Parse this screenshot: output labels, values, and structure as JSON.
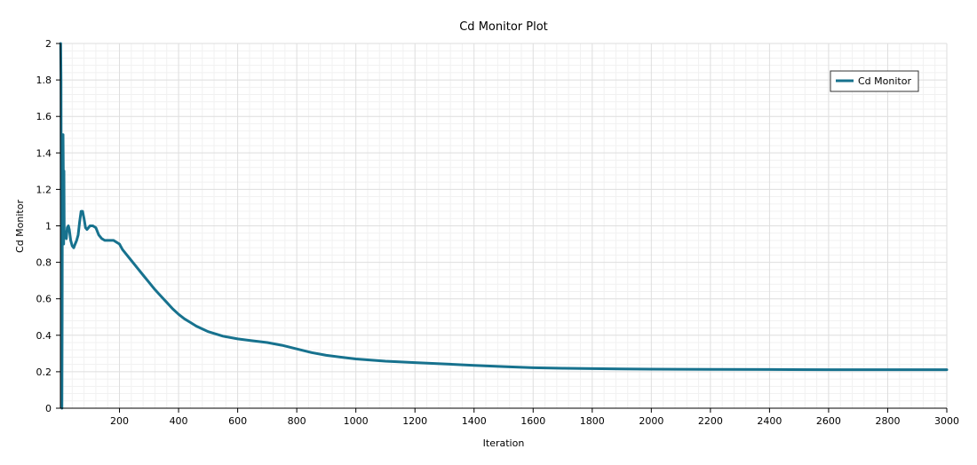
{
  "chart_data": {
    "type": "line",
    "title": "Cd Monitor Plot",
    "xlabel": "Iteration",
    "ylabel": "Cd Monitor",
    "xlim": [
      0,
      3000
    ],
    "ylim": [
      0,
      2
    ],
    "x_ticks": [
      200,
      400,
      600,
      800,
      1000,
      1200,
      1400,
      1600,
      1800,
      2000,
      2200,
      2400,
      2600,
      2800,
      3000
    ],
    "y_ticks": [
      0,
      0.2,
      0.4,
      0.6,
      0.8,
      1,
      1.2,
      1.4,
      1.6,
      1.8,
      2
    ],
    "grid": true,
    "legend_position": "top-right",
    "series": [
      {
        "name": "Cd Monitor",
        "color": "#17728e",
        "x": [
          1,
          2,
          3,
          4,
          5,
          6,
          7,
          8,
          9,
          10,
          11,
          12,
          13,
          15,
          17,
          20,
          23,
          27,
          30,
          35,
          40,
          45,
          50,
          55,
          60,
          65,
          70,
          75,
          80,
          85,
          90,
          95,
          100,
          110,
          120,
          130,
          140,
          150,
          160,
          170,
          180,
          190,
          200,
          210,
          220,
          240,
          260,
          280,
          300,
          320,
          340,
          360,
          380,
          400,
          420,
          440,
          460,
          480,
          500,
          550,
          600,
          650,
          700,
          750,
          800,
          850,
          900,
          950,
          1000,
          1100,
          1200,
          1300,
          1400,
          1500,
          1600,
          1700,
          1800,
          1900,
          2000,
          2200,
          2400,
          2600,
          2800,
          3000
        ],
        "y": [
          2.0,
          1.8,
          1.0,
          0.3,
          0.0,
          0.5,
          1.5,
          1.5,
          1.5,
          1.3,
          0.9,
          1.3,
          0.97,
          0.97,
          0.94,
          0.93,
          0.99,
          1.0,
          0.98,
          0.92,
          0.89,
          0.88,
          0.9,
          0.92,
          0.95,
          1.02,
          1.08,
          1.08,
          1.04,
          0.99,
          0.98,
          0.99,
          1.0,
          1.0,
          0.99,
          0.95,
          0.93,
          0.92,
          0.92,
          0.92,
          0.92,
          0.91,
          0.9,
          0.87,
          0.85,
          0.81,
          0.77,
          0.73,
          0.69,
          0.65,
          0.615,
          0.58,
          0.545,
          0.515,
          0.49,
          0.47,
          0.45,
          0.435,
          0.42,
          0.395,
          0.38,
          0.37,
          0.36,
          0.345,
          0.325,
          0.305,
          0.29,
          0.28,
          0.27,
          0.258,
          0.25,
          0.243,
          0.235,
          0.228,
          0.222,
          0.219,
          0.217,
          0.215,
          0.214,
          0.213,
          0.212,
          0.211,
          0.211,
          0.211
        ]
      }
    ]
  }
}
